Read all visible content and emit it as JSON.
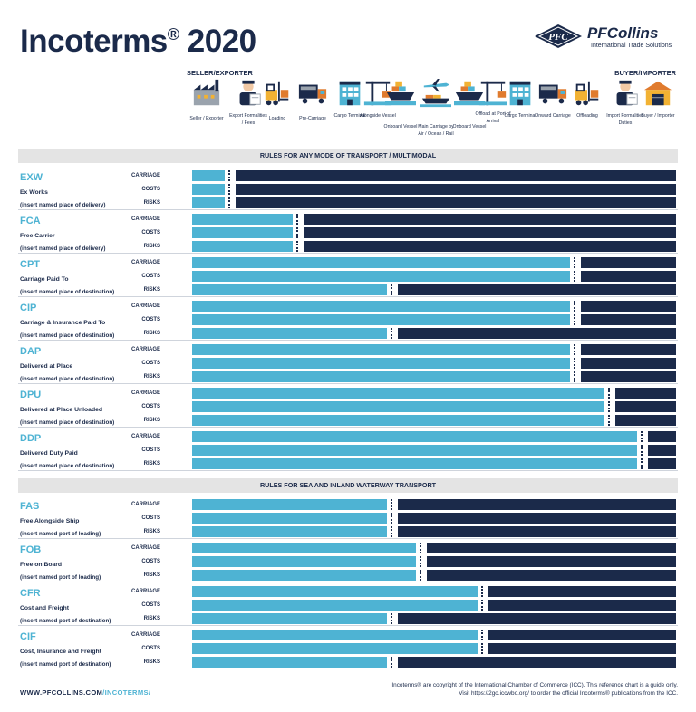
{
  "title": "Incoterms",
  "title_reg": "®",
  "title_year": "2020",
  "logo": {
    "mark": "PFC",
    "name": "PFCollins",
    "subtitle": "International Trade Solutions"
  },
  "seller_label": "SELLER/EXPORTER",
  "buyer_label": "BUYER/IMPORTER",
  "steps": [
    {
      "label": "Seller / Exporter",
      "icon": "factory-icon"
    },
    {
      "label": "Export Formalities / Fees",
      "icon": "customs-officer-icon"
    },
    {
      "label": "Loading",
      "icon": "forklift-icon"
    },
    {
      "label": "Pre-Carriage",
      "icon": "truck-icon"
    },
    {
      "label": "Cargo Terminal",
      "icon": "terminal-building-icon"
    },
    {
      "label": "Alongside Vessel",
      "icon": "crane-icon"
    },
    {
      "label": "Onboard Vessel",
      "icon": "ship-icon"
    },
    {
      "label": "Main Carriage by Air / Ocean / Rail",
      "icon": "plane-ship-train-icon"
    },
    {
      "label": "Onboard Vessel",
      "icon": "ship-icon"
    },
    {
      "label": "Offload at Port of Arrival",
      "icon": "crane-icon"
    },
    {
      "label": "Cargo Terminal",
      "icon": "terminal-building-icon"
    },
    {
      "label": "Onward Carriage",
      "icon": "truck-icon"
    },
    {
      "label": "Offloading",
      "icon": "forklift-icon"
    },
    {
      "label": "Import Formalities Duties",
      "icon": "customs-officer-icon"
    },
    {
      "label": "Buyer / Importer",
      "icon": "warehouse-icon"
    }
  ],
  "row_labels": [
    "CARRIAGE",
    "COSTS",
    "RISKS"
  ],
  "sections": [
    {
      "title": "RULES FOR ANY MODE OF TRANSPORT / MULTIMODAL",
      "terms": [
        {
          "code": "EXW",
          "name": "Ex Works",
          "place": "(insert named place of delivery)",
          "transfer": [
            0.068,
            0.068,
            0.068
          ]
        },
        {
          "code": "FCA",
          "name": "Free Carrier",
          "place": "(insert named place of delivery)",
          "transfer": [
            0.208,
            0.208,
            0.208
          ]
        },
        {
          "code": "CPT",
          "name": "Carriage Paid To",
          "place": "(insert named place of destination)",
          "transfer": [
            0.78,
            0.78,
            0.402
          ]
        },
        {
          "code": "CIP",
          "name": "Carriage & Insurance Paid To",
          "place": "(insert named place of destination)",
          "transfer": [
            0.78,
            0.78,
            0.402
          ]
        },
        {
          "code": "DAP",
          "name": "Delivered at Place",
          "place": "(insert named place of destination)",
          "transfer": [
            0.78,
            0.78,
            0.78
          ]
        },
        {
          "code": "DPU",
          "name": "Delivered at Place Unloaded",
          "place": "(insert named place of destination)",
          "transfer": [
            0.852,
            0.852,
            0.852
          ]
        },
        {
          "code": "DDP",
          "name": "Delivered Duty Paid",
          "place": "(insert named place of destination)",
          "transfer": [
            0.92,
            0.92,
            0.92
          ]
        }
      ]
    },
    {
      "title": "RULES FOR SEA AND INLAND WATERWAY TRANSPORT",
      "terms": [
        {
          "code": "FAS",
          "name": "Free Alongside Ship",
          "place": "(insert named port of loading)",
          "transfer": [
            0.402,
            0.402,
            0.402
          ]
        },
        {
          "code": "FOB",
          "name": "Free on Board",
          "place": "(insert named port of loading)",
          "transfer": [
            0.462,
            0.462,
            0.462
          ]
        },
        {
          "code": "CFR",
          "name": "Cost and Freight",
          "place": "(insert named port of destination)",
          "transfer": [
            0.59,
            0.59,
            0.402
          ]
        },
        {
          "code": "CIF",
          "name": "Cost, Insurance and Freight",
          "place": "(insert named port of destination)",
          "transfer": [
            0.59,
            0.59,
            0.402
          ]
        }
      ]
    }
  ],
  "footer": {
    "url_main": "WWW.PFCOLLINS.COM",
    "url_path": "/INCOTERMS/",
    "note_line1": "Incoterms® are copyright of the International Chamber of Commerce (ICC). This reference chart is a guide only.",
    "note_line2": "Visit https://2go.iccwbo.org/ to order the official Incoterms® publications from the ICC."
  },
  "colors": {
    "seller": "#4eb3d3",
    "buyer": "#1b2a4a",
    "section_bg": "#e4e4e4"
  }
}
